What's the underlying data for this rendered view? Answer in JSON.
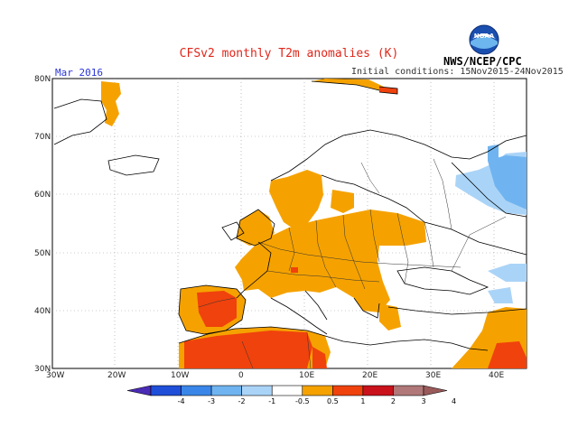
{
  "header": {
    "title": "CFSv2 monthly T2m anomalies (K)",
    "month": "Mar 2016",
    "initial_conditions": "Initial conditions: 15Nov2015-24Nov2015",
    "agency": "NWS/NCEP/CPC",
    "logo_text": "NOAA"
  },
  "axes": {
    "lat_labels": [
      "80N",
      "70N",
      "60N",
      "50N",
      "40N",
      "30N"
    ],
    "lon_labels": [
      "30W",
      "20W",
      "10W",
      "0",
      "10E",
      "20E",
      "30E",
      "40E"
    ]
  },
  "colorbar": {
    "ticks": [
      "-4",
      "-3",
      "-2",
      "-1",
      "-0.5",
      "0.5",
      "1",
      "2",
      "3",
      "4"
    ],
    "colors": [
      "#4a2bb5",
      "#1f4fd8",
      "#3a86e8",
      "#6fb4f0",
      "#aad4f7",
      "#ffffff",
      "#f5a200",
      "#f0420c",
      "#c9121c",
      "#b07878",
      "#9a5a5a"
    ]
  },
  "legend_colors": {
    "warm_05_1": "#f5a200",
    "warm_1_2": "#f0420c",
    "warm_2_3": "#c9121c",
    "cool_05_1": "#aad4f7",
    "cool_1_2": "#6fb4f0"
  }
}
